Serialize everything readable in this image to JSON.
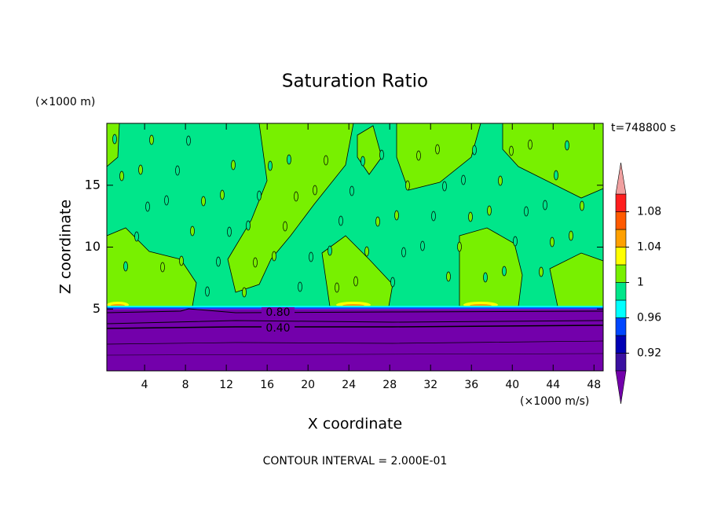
{
  "chart_data": {
    "type": "contour",
    "title": "Saturation Ratio",
    "x_label": "X coordinate",
    "x_unit": "(×1000 m/s)",
    "y_label": "Z coordinate",
    "y_unit": "(×1000 m)",
    "time_label": "t=748800 s",
    "footer": "CONTOUR INTERVAL = 2.000E-01",
    "xlim": [
      0.3,
      48.9
    ],
    "xticks": [
      4,
      8,
      12,
      16,
      20,
      24,
      28,
      32,
      36,
      40,
      44,
      48
    ],
    "ylim": [
      0,
      20
    ],
    "yticks": [
      5,
      10,
      15
    ],
    "levels": [
      0.9,
      0.92,
      0.94,
      0.96,
      0.98,
      1,
      1.02,
      1.04,
      1.06,
      1.08,
      1.1
    ],
    "colors": [
      "#7300ab",
      "#3a10a0",
      "#0000b4",
      "#0046ff",
      "#00ffff",
      "#00e68a",
      "#78f000",
      "#ffff00",
      "#ffa000",
      "#ff5a00",
      "#ff1e1e",
      "#f0a0a0"
    ],
    "cbticks": [
      0.92,
      0.96,
      1,
      1.04,
      1.08
    ],
    "contour_labels": [
      {
        "value": 0.8,
        "label": "0.80"
      },
      {
        "value": 0.4,
        "label": "0.40"
      }
    ]
  }
}
